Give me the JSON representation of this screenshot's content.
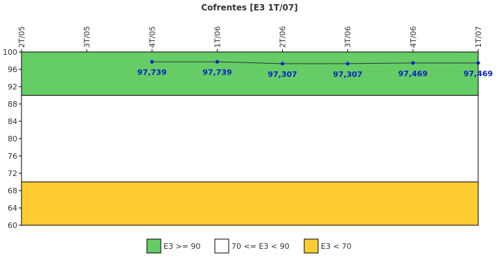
{
  "chart_data": {
    "type": "line",
    "title": "Cofrentes [E3 1T/07]",
    "categories": [
      "2T/05",
      "3T/05",
      "4T/05",
      "1T/06",
      "2T/06",
      "3T/06",
      "4T/06",
      "1T/07"
    ],
    "series": [
      {
        "values": [
          null,
          null,
          97.739,
          97.739,
          97.307,
          97.307,
          97.469,
          97.469
        ],
        "labels": [
          "",
          "",
          "97,739",
          "97,739",
          "97,307",
          "97,307",
          "97,469",
          "97,469"
        ],
        "color": "#0b22c9"
      }
    ],
    "ylim": [
      60,
      100
    ],
    "yticks": [
      60,
      64,
      68,
      72,
      76,
      80,
      84,
      88,
      92,
      96,
      100
    ],
    "bands": [
      {
        "from": 90,
        "to": 100,
        "color": "#66cc66",
        "label": "E3 >= 90"
      },
      {
        "from": 70,
        "to": 90,
        "color": "#ffffff",
        "label": "70 <= E3 < 90"
      },
      {
        "from": 60,
        "to": 70,
        "color": "#ffcc33",
        "label": "E3 < 70"
      }
    ],
    "legend_position": "bottom"
  }
}
